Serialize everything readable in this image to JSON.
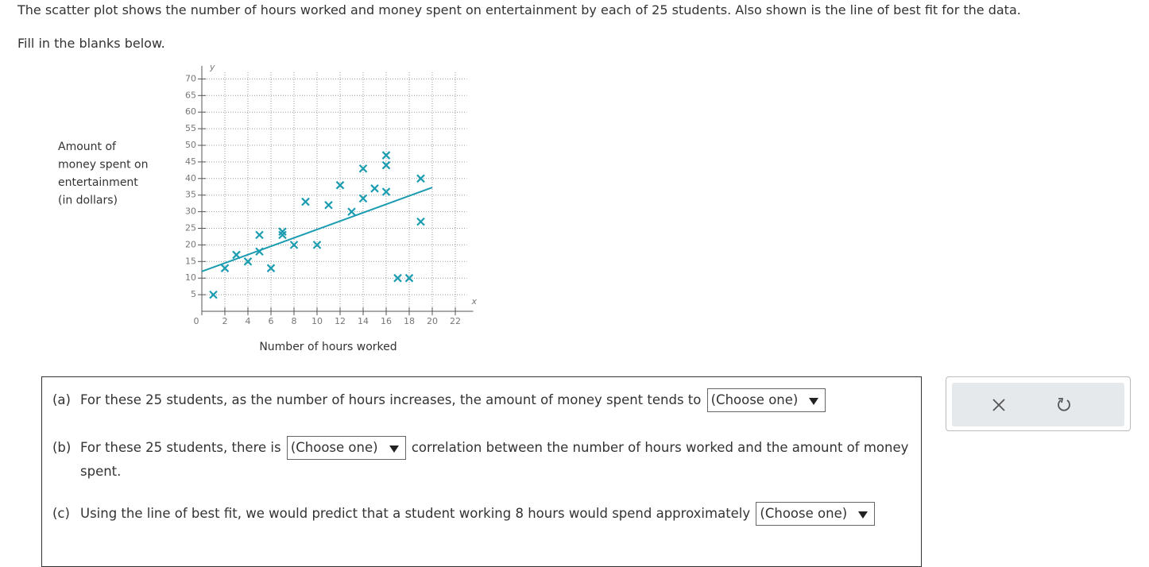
{
  "intro": "The scatter plot shows the number of hours worked and money spent on entertainment by each of 25 students. Also shown is the line of best fit for the data.",
  "instruction": "Fill in the blanks below.",
  "chart_data": {
    "type": "scatter",
    "x_label": "Number of hours worked",
    "y_label": [
      "Amount of",
      "money spent on",
      "entertainment",
      "(in dollars)"
    ],
    "x_axis_symbol": "x",
    "y_axis_symbol": "y",
    "color": "#1b9cb1",
    "x": [
      1,
      2,
      3,
      4,
      5,
      5,
      6,
      7,
      7,
      8,
      9,
      10,
      11,
      12,
      13,
      14,
      14,
      15,
      16,
      16,
      16,
      17,
      18,
      19,
      19
    ],
    "values": [
      5,
      13,
      17,
      15,
      23,
      18,
      13,
      24,
      23,
      20,
      33,
      20,
      32,
      38,
      30,
      43,
      34,
      37,
      47,
      44,
      36,
      10,
      10,
      40,
      27
    ],
    "fit_line": {
      "x": [
        0,
        20
      ],
      "values": [
        12,
        37.3
      ]
    },
    "xlim": [
      0,
      23
    ],
    "ylim": [
      0,
      72
    ],
    "xticks": [
      0,
      2,
      4,
      6,
      8,
      10,
      12,
      14,
      16,
      18,
      20,
      22
    ],
    "yticks": [
      5,
      10,
      15,
      20,
      25,
      30,
      35,
      40,
      45,
      50,
      55,
      60,
      65,
      70
    ],
    "grid": true
  },
  "questions": [
    {
      "label": "(a)",
      "before": "For these 25 students, as the number of hours increases, the amount of money spent tends to",
      "dropdown": "(Choose one)"
    },
    {
      "label": "(b)",
      "before": "For these 25 students, there is",
      "dropdown": "(Choose one)",
      "after": "correlation between the number of hours worked and the amount of money spent."
    },
    {
      "label": "(c)",
      "before": "Using the line of best fit, we would predict that a student working 8 hours would spend approximately",
      "dropdown": "(Choose one)"
    }
  ]
}
